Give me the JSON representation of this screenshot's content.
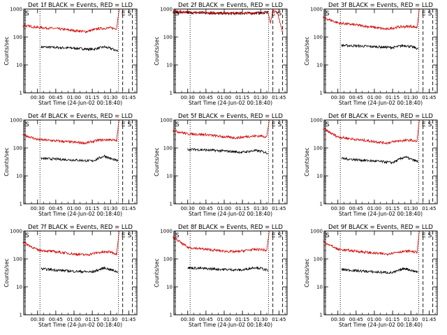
{
  "chart_data": [
    {
      "type": "line",
      "title": "Det 1f BLACK = Events, RED = LLD",
      "xlabel": "Start Time (24-Jun-02 00:18:40)",
      "ylabel": "Counts/sec",
      "yscale": "log",
      "ylim": [
        1,
        1000
      ],
      "grid": false,
      "xticks": [
        "00:30",
        "00:45",
        "01:00",
        "01:15",
        "01:30",
        "01:45"
      ],
      "yticks": [
        "1",
        "10",
        "100",
        "1000"
      ],
      "event_labels": [
        "S",
        "E",
        "S"
      ],
      "series": [
        {
          "name": "Events",
          "color": "#000000",
          "x": [
            "00:33",
            "00:45",
            "01:00",
            "01:15",
            "01:25",
            "01:31",
            "01:36"
          ],
          "y": [
            44,
            42,
            40,
            36,
            44,
            38,
            31
          ]
        },
        {
          "name": "LLD",
          "color": "#d40000",
          "x": [
            "00:18",
            "00:30",
            "00:45",
            "01:00",
            "01:10",
            "01:20",
            "01:30",
            "01:35",
            "01:37"
          ],
          "y": [
            260,
            220,
            200,
            170,
            155,
            200,
            210,
            200,
            1000
          ]
        }
      ]
    },
    {
      "type": "line",
      "title": "Det 2f BLACK = Events, RED = LLD",
      "xlabel": "Start Time (24-Jun-02 00:18:40)",
      "ylabel": "Counts/sec",
      "yscale": "log",
      "ylim": [
        1,
        1000
      ],
      "grid": false,
      "xticks": [
        "00:30",
        "00:45",
        "01:00",
        "01:15",
        "01:30",
        "01:45"
      ],
      "yticks": [
        "1",
        "10",
        "100",
        "1000"
      ],
      "event_labels": [
        "S",
        "E",
        "S"
      ],
      "series": [
        {
          "name": "Events",
          "color": "#000000",
          "x": [
            "00:18",
            "00:30",
            "00:45",
            "01:00",
            "01:15",
            "01:30",
            "01:36"
          ],
          "y": [
            780,
            740,
            720,
            700,
            700,
            720,
            760
          ]
        },
        {
          "name": "LLD",
          "color": "#d40000",
          "x": [
            "00:18",
            "00:30",
            "00:45",
            "01:00",
            "01:15",
            "01:30",
            "01:36",
            "01:38",
            "01:40",
            "01:44",
            "01:48"
          ],
          "y": [
            820,
            780,
            740,
            720,
            720,
            740,
            780,
            300,
            1000,
            700,
            150
          ]
        }
      ]
    },
    {
      "type": "line",
      "title": "Det 3f BLACK = Events, RED = LLD",
      "xlabel": "Start Time (24-Jun-02 00:18:40)",
      "ylabel": "Counts/sec",
      "yscale": "log",
      "ylim": [
        1,
        1000
      ],
      "grid": false,
      "xticks": [
        "00:30",
        "00:45",
        "01:00",
        "01:15",
        "01:30",
        "01:45"
      ],
      "yticks": [
        "1",
        "10",
        "100",
        "1000"
      ],
      "event_labels": [
        "S",
        "E",
        "S"
      ],
      "series": [
        {
          "name": "Events",
          "color": "#000000",
          "x": [
            "00:33",
            "00:45",
            "01:00",
            "01:15",
            "01:25",
            "01:31",
            "01:36"
          ],
          "y": [
            50,
            48,
            45,
            42,
            50,
            44,
            38
          ]
        },
        {
          "name": "LLD",
          "color": "#d40000",
          "x": [
            "00:18",
            "00:30",
            "00:45",
            "01:00",
            "01:10",
            "01:20",
            "01:30",
            "01:35",
            "01:37"
          ],
          "y": [
            500,
            320,
            270,
            220,
            190,
            230,
            240,
            220,
            1000
          ]
        }
      ]
    },
    {
      "type": "line",
      "title": "Det 4f BLACK = Events, RED = LLD",
      "xlabel": "Start Time (24-Jun-02 00:18:40)",
      "ylabel": "Counts/sec",
      "yscale": "log",
      "ylim": [
        1,
        1000
      ],
      "grid": false,
      "xticks": [
        "00:30",
        "00:45",
        "01:00",
        "01:15",
        "01:30",
        "01:45"
      ],
      "yticks": [
        "1",
        "10",
        "100",
        "1000"
      ],
      "event_labels": [
        "S",
        "E",
        "S"
      ],
      "series": [
        {
          "name": "Events",
          "color": "#000000",
          "x": [
            "00:33",
            "00:45",
            "01:00",
            "01:15",
            "01:25",
            "01:31",
            "01:36"
          ],
          "y": [
            42,
            40,
            37,
            34,
            52,
            40,
            34
          ]
        },
        {
          "name": "LLD",
          "color": "#d40000",
          "x": [
            "00:18",
            "00:30",
            "00:45",
            "01:00",
            "01:10",
            "01:20",
            "01:30",
            "01:35",
            "01:37"
          ],
          "y": [
            300,
            200,
            180,
            160,
            150,
            190,
            200,
            180,
            1000
          ]
        }
      ]
    },
    {
      "type": "line",
      "title": "Det 5f BLACK = Events, RED = LLD",
      "xlabel": "Start Time (24-Jun-02 00:18:40)",
      "ylabel": "Counts/sec",
      "yscale": "log",
      "ylim": [
        1,
        1000
      ],
      "grid": false,
      "xticks": [
        "00:30",
        "00:45",
        "01:00",
        "01:15",
        "01:30",
        "01:45"
      ],
      "yticks": [
        "1",
        "10",
        "100",
        "1000"
      ],
      "event_labels": [
        "S",
        "E",
        "S"
      ],
      "series": [
        {
          "name": "Events",
          "color": "#000000",
          "x": [
            "00:30",
            "00:45",
            "01:00",
            "01:15",
            "01:25",
            "01:31",
            "01:36"
          ],
          "y": [
            90,
            85,
            78,
            70,
            80,
            75,
            65
          ]
        },
        {
          "name": "LLD",
          "color": "#d40000",
          "x": [
            "00:18",
            "00:30",
            "00:45",
            "01:00",
            "01:10",
            "01:20",
            "01:30",
            "01:35",
            "01:37"
          ],
          "y": [
            420,
            320,
            300,
            250,
            230,
            260,
            270,
            250,
            1000
          ]
        }
      ]
    },
    {
      "type": "line",
      "title": "Det 6f BLACK = Events, RED = LLD",
      "xlabel": "Start Time (24-Jun-02 00:18:40)",
      "ylabel": "Counts/sec",
      "yscale": "log",
      "ylim": [
        1,
        1000
      ],
      "grid": false,
      "xticks": [
        "00:30",
        "00:45",
        "01:00",
        "01:15",
        "01:30",
        "01:45"
      ],
      "yticks": [
        "1",
        "10",
        "100",
        "1000"
      ],
      "event_labels": [
        "S",
        "E",
        "S"
      ],
      "series": [
        {
          "name": "Events",
          "color": "#000000",
          "x": [
            "00:33",
            "00:45",
            "01:00",
            "01:15",
            "01:25",
            "01:31",
            "01:36"
          ],
          "y": [
            42,
            38,
            34,
            30,
            48,
            38,
            32
          ]
        },
        {
          "name": "LLD",
          "color": "#d40000",
          "x": [
            "00:18",
            "00:30",
            "00:45",
            "01:00",
            "01:10",
            "01:20",
            "01:30",
            "01:35",
            "01:37"
          ],
          "y": [
            480,
            250,
            200,
            170,
            150,
            180,
            190,
            170,
            1000
          ]
        }
      ]
    },
    {
      "type": "line",
      "title": "Det 7f BLACK = Events, RED = LLD",
      "xlabel": "Start Time (24-Jun-02 00:18:40)",
      "ylabel": "Counts/sec",
      "yscale": "log",
      "ylim": [
        1,
        1000
      ],
      "grid": false,
      "xticks": [
        "00:30",
        "00:45",
        "01:00",
        "01:15",
        "01:30",
        "01:45"
      ],
      "yticks": [
        "1",
        "10",
        "100",
        "1000"
      ],
      "event_labels": [
        "S",
        "E",
        "S"
      ],
      "series": [
        {
          "name": "Events",
          "color": "#000000",
          "x": [
            "00:33",
            "00:45",
            "01:00",
            "01:15",
            "01:25",
            "01:31",
            "01:36"
          ],
          "y": [
            44,
            40,
            36,
            34,
            48,
            40,
            34
          ]
        },
        {
          "name": "LLD",
          "color": "#d40000",
          "x": [
            "00:18",
            "00:30",
            "00:45",
            "01:00",
            "01:10",
            "01:20",
            "01:30",
            "01:35",
            "01:37"
          ],
          "y": [
            400,
            210,
            180,
            150,
            140,
            170,
            180,
            150,
            1000
          ]
        }
      ]
    },
    {
      "type": "line",
      "title": "Det 8f BLACK = Events, RED = LLD",
      "xlabel": "Start Time (24-Jun-02 00:18:40)",
      "ylabel": "Counts/sec",
      "yscale": "log",
      "ylim": [
        1,
        1000
      ],
      "grid": false,
      "xticks": [
        "00:30",
        "00:45",
        "01:00",
        "01:15",
        "01:30",
        "01:45"
      ],
      "yticks": [
        "1",
        "10",
        "100",
        "1000"
      ],
      "event_labels": [
        "S",
        "E",
        "S"
      ],
      "series": [
        {
          "name": "Events",
          "color": "#000000",
          "x": [
            "00:30",
            "00:45",
            "01:00",
            "01:15",
            "01:25",
            "01:31",
            "01:36"
          ],
          "y": [
            48,
            45,
            42,
            40,
            50,
            45,
            38
          ]
        },
        {
          "name": "LLD",
          "color": "#d40000",
          "x": [
            "00:18",
            "00:30",
            "00:45",
            "01:00",
            "01:10",
            "01:20",
            "01:30",
            "01:35",
            "01:37"
          ],
          "y": [
            600,
            260,
            220,
            190,
            180,
            210,
            220,
            200,
            1000
          ]
        }
      ]
    },
    {
      "type": "line",
      "title": "Det 9f BLACK = Events, RED = LLD",
      "xlabel": "Start Time (24-Jun-02 00:18:40)",
      "ylabel": "Counts/sec",
      "yscale": "log",
      "ylim": [
        1,
        1000
      ],
      "grid": false,
      "xticks": [
        "00:30",
        "00:45",
        "01:00",
        "01:15",
        "01:30",
        "01:45"
      ],
      "yticks": [
        "1",
        "10",
        "100",
        "1000"
      ],
      "event_labels": [
        "S",
        "E",
        "S"
      ],
      "series": [
        {
          "name": "Events",
          "color": "#000000",
          "x": [
            "00:33",
            "00:45",
            "01:00",
            "01:15",
            "01:25",
            "01:31",
            "01:36"
          ],
          "y": [
            42,
            38,
            34,
            32,
            46,
            38,
            34
          ]
        },
        {
          "name": "LLD",
          "color": "#d40000",
          "x": [
            "00:18",
            "00:30",
            "00:45",
            "01:00",
            "01:10",
            "01:20",
            "01:30",
            "01:35",
            "01:37"
          ],
          "y": [
            420,
            220,
            190,
            160,
            150,
            180,
            190,
            170,
            1000
          ]
        }
      ]
    }
  ]
}
